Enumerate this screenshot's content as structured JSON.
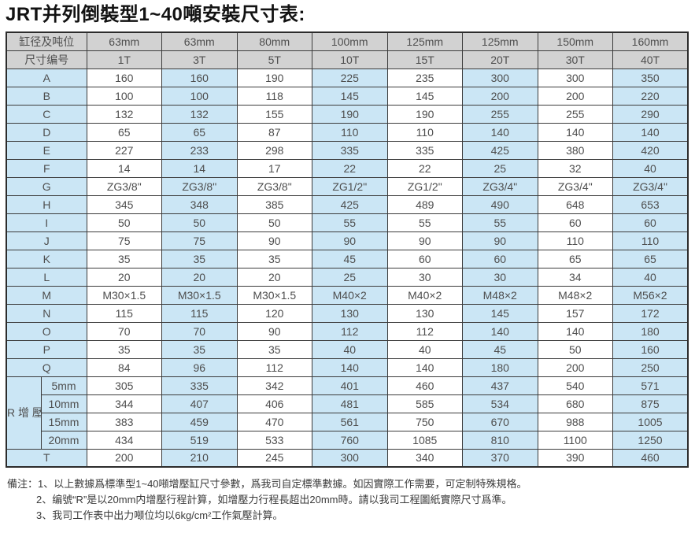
{
  "title": "JRT并列倒裝型1~40噸安裝尺寸表:",
  "table": {
    "header_row1_label": "缸径及吨位",
    "header_row2_label": "尺寸编号",
    "columns_row1": [
      "63mm",
      "63mm",
      "80mm",
      "100mm",
      "125mm",
      "125mm",
      "150mm",
      "160mm"
    ],
    "columns_row2": [
      "1T",
      "3T",
      "5T",
      "10T",
      "15T",
      "20T",
      "30T",
      "40T"
    ],
    "rows": [
      {
        "label": "A",
        "values": [
          "160",
          "160",
          "190",
          "225",
          "235",
          "300",
          "300",
          "350"
        ]
      },
      {
        "label": "B",
        "values": [
          "100",
          "100",
          "118",
          "145",
          "145",
          "200",
          "200",
          "220"
        ]
      },
      {
        "label": "C",
        "values": [
          "132",
          "132",
          "155",
          "190",
          "190",
          "255",
          "255",
          "290"
        ]
      },
      {
        "label": "D",
        "values": [
          "65",
          "65",
          "87",
          "110",
          "110",
          "140",
          "140",
          "140"
        ]
      },
      {
        "label": "E",
        "values": [
          "227",
          "233",
          "298",
          "335",
          "335",
          "425",
          "380",
          "420"
        ]
      },
      {
        "label": "F",
        "values": [
          "14",
          "14",
          "17",
          "22",
          "22",
          "25",
          "32",
          "40"
        ]
      },
      {
        "label": "G",
        "values": [
          "ZG3/8\"",
          "ZG3/8\"",
          "ZG3/8\"",
          "ZG1/2\"",
          "ZG1/2\"",
          "ZG3/4\"",
          "ZG3/4\"",
          "ZG3/4\""
        ]
      },
      {
        "label": "H",
        "values": [
          "345",
          "348",
          "385",
          "425",
          "489",
          "490",
          "648",
          "653"
        ]
      },
      {
        "label": "I",
        "values": [
          "50",
          "50",
          "50",
          "55",
          "55",
          "55",
          "60",
          "60"
        ]
      },
      {
        "label": "J",
        "values": [
          "75",
          "75",
          "90",
          "90",
          "90",
          "90",
          "110",
          "110"
        ]
      },
      {
        "label": "K",
        "values": [
          "35",
          "35",
          "35",
          "45",
          "60",
          "60",
          "65",
          "65"
        ]
      },
      {
        "label": "L",
        "values": [
          "20",
          "20",
          "20",
          "25",
          "30",
          "30",
          "34",
          "40"
        ]
      },
      {
        "label": "M",
        "values": [
          "M30×1.5",
          "M30×1.5",
          "M30×1.5",
          "M40×2",
          "M40×2",
          "M48×2",
          "M48×2",
          "M56×2"
        ]
      },
      {
        "label": "N",
        "values": [
          "115",
          "115",
          "120",
          "130",
          "130",
          "145",
          "157",
          "172"
        ]
      },
      {
        "label": "O",
        "values": [
          "70",
          "70",
          "90",
          "112",
          "112",
          "140",
          "140",
          "180"
        ]
      },
      {
        "label": "P",
        "values": [
          "35",
          "35",
          "35",
          "40",
          "40",
          "45",
          "50",
          "160"
        ]
      },
      {
        "label": "Q",
        "values": [
          "84",
          "96",
          "112",
          "140",
          "140",
          "180",
          "200",
          "250"
        ]
      }
    ],
    "r_section": {
      "main_label": "R增壓行程",
      "sub_rows": [
        {
          "label": "5mm",
          "values": [
            "305",
            "335",
            "342",
            "401",
            "460",
            "437",
            "540",
            "571"
          ]
        },
        {
          "label": "10mm",
          "values": [
            "344",
            "407",
            "406",
            "481",
            "585",
            "534",
            "680",
            "875"
          ]
        },
        {
          "label": "15mm",
          "values": [
            "383",
            "459",
            "470",
            "561",
            "750",
            "670",
            "988",
            "1005"
          ]
        },
        {
          "label": "20mm",
          "values": [
            "434",
            "519",
            "533",
            "760",
            "1085",
            "810",
            "1100",
            "1250"
          ]
        }
      ]
    },
    "t_row": {
      "label": "T",
      "values": [
        "200",
        "210",
        "245",
        "300",
        "340",
        "370",
        "390",
        "460"
      ]
    }
  },
  "footnotes": {
    "prefix": "備注：",
    "items": [
      "1、以上數據爲標準型1~40噸增壓缸尺寸參數，爲我司自定標準數據。如因實際工作需要，可定制特殊規格。",
      "2、编號“R”是以20mm内增壓行程計算，如增壓力行程長超出20mm時。請以我司工程圖紙實際尺寸爲準。",
      "3、我司工作表中出力噸位均以6kg/cm²工作氣壓計算。"
    ]
  },
  "colors": {
    "header_bg": "#d2d2d2",
    "row_blue_bg": "#cbe6f5",
    "row_white_bg": "#ffffff",
    "border": "#3c3c3c",
    "cell_text": "#4e4e4e",
    "title_text": "#121212"
  }
}
